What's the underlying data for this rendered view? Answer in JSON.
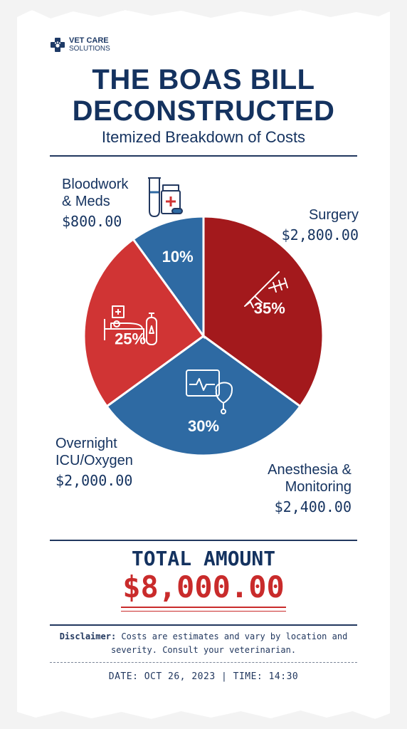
{
  "brand": {
    "line1": "VET CARE",
    "line2": "SOLUTIONS"
  },
  "header": {
    "title_line1": "THE BOAS BILL",
    "title_line2": "DECONSTRUCTED",
    "subtitle": "Itemized Breakdown of Costs"
  },
  "colors": {
    "navy": "#14325f",
    "blue": "#2e6aa3",
    "red": "#d03434",
    "dark_red": "#a3191c",
    "total_red": "#c92b2b"
  },
  "chart_data": {
    "type": "pie",
    "slices": [
      {
        "label": "Surgery",
        "amount": "$2,800.00",
        "value": 35,
        "pct": "35%",
        "color": "#a3191c",
        "icon": "scalpel-sutures-icon"
      },
      {
        "label": "Anesthesia & Monitoring",
        "label_line1": "Anesthesia &",
        "label_line2": "Monitoring",
        "amount": "$2,400.00",
        "value": 30,
        "pct": "30%",
        "color": "#2e6aa3",
        "icon": "monitor-oxygen-mask-icon"
      },
      {
        "label": "Overnight ICU/Oxygen",
        "label_line1": "Overnight",
        "label_line2": "ICU/Oxygen",
        "amount": "$2,000.00",
        "value": 25,
        "pct": "25%",
        "color": "#d03434",
        "icon": "hospital-bed-oxygen-tank-icon"
      },
      {
        "label": "Bloodwork & Meds",
        "label_line1": "Bloodwork",
        "label_line2": "& Meds",
        "amount": "$800.00",
        "value": 10,
        "pct": "10%",
        "color": "#2e6aa3",
        "icon": "test-tube-pill-bottle-icon"
      }
    ]
  },
  "total": {
    "label": "TOTAL AMOUNT",
    "amount": "$8,000.00"
  },
  "footer": {
    "disclaimer_label": "Disclaimer:",
    "disclaimer_text": " Costs are estimates and vary by location and severity. Consult your veterinarian.",
    "datetime": "DATE: OCT 26, 2023 | TIME: 14:30"
  }
}
